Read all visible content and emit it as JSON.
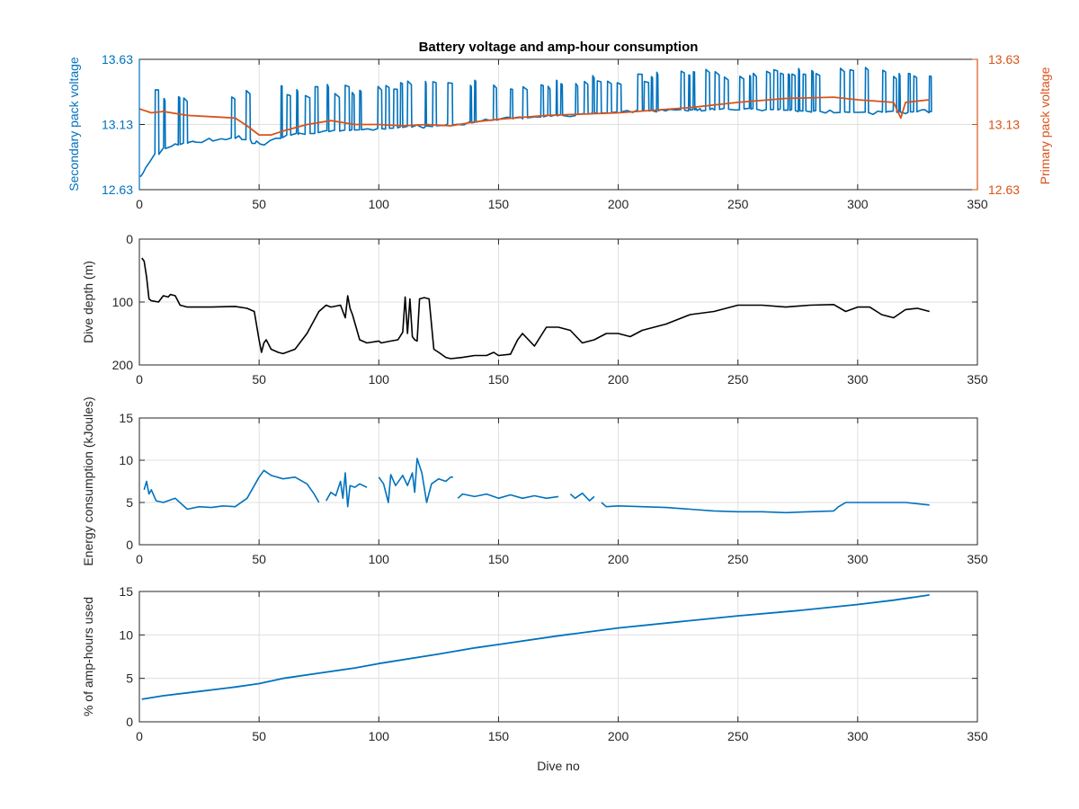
{
  "figure": {
    "title": "Battery voltage and amp-hour consumption",
    "xlabel": "Dive no"
  },
  "colors": {
    "secondary": "#0072BD",
    "primary": "#D95319",
    "depth": "#000000",
    "energy": "#0072BD",
    "amp": "#0072BD",
    "grid": "#dfdfdf",
    "axis": "#262626"
  },
  "chart_data": [
    {
      "type": "line",
      "title": "Battery voltage and amp-hour consumption",
      "xlabel": "",
      "ylabel": "Secondary pack voltage",
      "y2label": "Primary pack voltage",
      "xlim": [
        0,
        350
      ],
      "xticks": [
        0,
        50,
        100,
        150,
        200,
        250,
        300,
        350
      ],
      "ylim": [
        12.63,
        13.63
      ],
      "yticks": [
        12.63,
        13.13,
        13.63
      ],
      "y2lim": [
        12.63,
        13.63
      ],
      "y2ticks": [
        12.63,
        13.13,
        13.63
      ],
      "grid": true,
      "series": [
        {
          "name": "",
          "axis": "left",
          "color": "#0072BD",
          "note_style": "low baseline with frequent spikes",
          "baseline": {
            "x": [
              0,
              5,
              20,
              40,
              50,
              60,
              80,
              100,
              130,
              150,
              175,
              200,
              250,
              300,
              330
            ],
            "y": [
              12.73,
              12.93,
              13.0,
              13.03,
              12.98,
              13.05,
              13.08,
              13.1,
              13.13,
              13.17,
              13.2,
              13.23,
              13.25,
              13.22,
              13.23
            ]
          },
          "spike_levels": {
            "x": [
              0,
              50,
              100,
              150,
              200,
              250,
              300,
              330
            ],
            "y": [
              13.45,
              13.42,
              13.47,
              13.47,
              13.52,
              13.57,
              13.57,
              13.55
            ]
          }
        },
        {
          "name": "",
          "axis": "right",
          "color": "#D95319",
          "x": [
            0,
            5,
            10,
            20,
            30,
            40,
            45,
            50,
            55,
            60,
            70,
            80,
            90,
            100,
            110,
            120,
            130,
            140,
            150,
            170,
            200,
            230,
            250,
            270,
            290,
            300,
            315,
            318,
            320,
            330
          ],
          "y": [
            13.25,
            13.22,
            13.23,
            13.2,
            13.19,
            13.18,
            13.12,
            13.05,
            13.05,
            13.08,
            13.13,
            13.16,
            13.13,
            13.13,
            13.12,
            13.13,
            13.12,
            13.15,
            13.17,
            13.2,
            13.22,
            13.26,
            13.3,
            13.33,
            13.34,
            13.32,
            13.3,
            13.18,
            13.3,
            13.32
          ]
        }
      ]
    },
    {
      "type": "line",
      "xlabel": "",
      "ylabel": "Dive depth (m)",
      "xlim": [
        0,
        350
      ],
      "xticks": [
        0,
        50,
        100,
        150,
        200,
        250,
        300,
        350
      ],
      "ylim": [
        0,
        200
      ],
      "y_reversed": true,
      "yticks": [
        0,
        100,
        200
      ],
      "grid": true,
      "series": [
        {
          "name": "",
          "color": "#000000",
          "x": [
            1,
            2,
            3,
            4,
            5,
            8,
            10,
            12,
            13,
            15,
            17,
            20,
            30,
            40,
            45,
            48,
            50,
            51,
            52,
            53,
            55,
            58,
            60,
            65,
            70,
            75,
            78,
            80,
            84,
            86,
            87,
            88,
            89,
            92,
            95,
            100,
            101,
            105,
            108,
            110,
            111,
            112,
            113,
            114,
            115,
            116,
            117,
            119,
            121,
            123,
            125,
            128,
            130,
            135,
            140,
            145,
            148,
            150,
            155,
            158,
            160,
            165,
            170,
            175,
            180,
            185,
            190,
            195,
            200,
            205,
            210,
            220,
            230,
            240,
            250,
            260,
            270,
            280,
            290,
            295,
            300,
            305,
            310,
            315,
            320,
            325,
            330
          ],
          "y": [
            30,
            35,
            60,
            95,
            98,
            100,
            90,
            92,
            88,
            90,
            105,
            108,
            108,
            107,
            110,
            115,
            160,
            180,
            165,
            160,
            175,
            180,
            182,
            175,
            150,
            115,
            105,
            108,
            105,
            125,
            90,
            110,
            120,
            160,
            165,
            162,
            165,
            162,
            160,
            148,
            92,
            150,
            95,
            155,
            160,
            162,
            95,
            93,
            95,
            175,
            180,
            188,
            190,
            188,
            185,
            185,
            180,
            185,
            183,
            160,
            150,
            170,
            140,
            140,
            145,
            165,
            160,
            150,
            150,
            155,
            145,
            135,
            120,
            115,
            105,
            105,
            108,
            105,
            104,
            115,
            108,
            108,
            120,
            125,
            112,
            110,
            115
          ]
        }
      ]
    },
    {
      "type": "line",
      "xlabel": "",
      "ylabel": "Energy consumption (kJoules)",
      "xlim": [
        0,
        350
      ],
      "xticks": [
        0,
        50,
        100,
        150,
        200,
        250,
        300,
        350
      ],
      "ylim": [
        0,
        15
      ],
      "yticks": [
        0,
        5,
        10,
        15
      ],
      "grid": true,
      "series": [
        {
          "name": "",
          "color": "#0072BD",
          "segments": [
            {
              "x": [
                2,
                3,
                4,
                5,
                7,
                10,
                15,
                20,
                25,
                30,
                35,
                40,
                45,
                48,
                50,
                52,
                55,
                60,
                65,
                70,
                73,
                75
              ],
              "y": [
                6.5,
                7.5,
                6.0,
                6.5,
                5.2,
                5.0,
                5.5,
                4.2,
                4.5,
                4.4,
                4.6,
                4.5,
                5.5,
                7.0,
                8.0,
                8.8,
                8.2,
                7.8,
                8.0,
                7.2,
                6.0,
                5.0
              ]
            },
            {
              "x": [
                78,
                80,
                82,
                84,
                85,
                86,
                87,
                88,
                90,
                92,
                95
              ],
              "y": [
                5.2,
                6.2,
                5.8,
                7.5,
                5.5,
                8.5,
                4.5,
                7.0,
                6.8,
                7.2,
                6.8
              ]
            },
            {
              "x": [
                100,
                102,
                104,
                105,
                107,
                110,
                112,
                114,
                115,
                116,
                118,
                120,
                122,
                125,
                128,
                130,
                131
              ],
              "y": [
                8.0,
                7.2,
                5.0,
                8.3,
                7.0,
                8.2,
                7.0,
                8.5,
                6.2,
                10.2,
                8.5,
                5.0,
                7.2,
                7.8,
                7.5,
                8.0,
                8.0
              ]
            },
            {
              "x": [
                133,
                135,
                140,
                145,
                150,
                155,
                160,
                165,
                170,
                175
              ],
              "y": [
                5.5,
                6.0,
                5.7,
                6.0,
                5.5,
                5.9,
                5.5,
                5.8,
                5.5,
                5.7
              ]
            },
            {
              "x": [
                180,
                182,
                185,
                188,
                190
              ],
              "y": [
                6.0,
                5.5,
                6.1,
                5.2,
                5.7
              ]
            },
            {
              "x": [
                193,
                195,
                200,
                210,
                220,
                230,
                240,
                250,
                260,
                270,
                280,
                290,
                292,
                295,
                300,
                310,
                320,
                330
              ],
              "y": [
                5.0,
                4.5,
                4.6,
                4.5,
                4.4,
                4.2,
                4.0,
                3.9,
                3.9,
                3.8,
                3.9,
                4.0,
                4.5,
                5.0,
                5.0,
                5.0,
                5.0,
                4.7
              ]
            }
          ]
        }
      ]
    },
    {
      "type": "line",
      "xlabel": "Dive no",
      "ylabel": "% of amp-hours used",
      "xlim": [
        0,
        350
      ],
      "xticks": [
        0,
        50,
        100,
        150,
        200,
        250,
        300,
        350
      ],
      "ylim": [
        0,
        15
      ],
      "yticks": [
        0,
        5,
        10,
        15
      ],
      "grid": true,
      "series": [
        {
          "name": "",
          "color": "#0072BD",
          "x": [
            1,
            10,
            25,
            40,
            50,
            60,
            75,
            90,
            100,
            125,
            140,
            150,
            175,
            200,
            225,
            250,
            275,
            300,
            315,
            330
          ],
          "y": [
            2.6,
            3.0,
            3.5,
            4.0,
            4.4,
            5.0,
            5.6,
            6.2,
            6.7,
            7.8,
            8.5,
            8.9,
            9.9,
            10.8,
            11.5,
            12.2,
            12.8,
            13.5,
            14.0,
            14.6
          ]
        }
      ]
    }
  ]
}
